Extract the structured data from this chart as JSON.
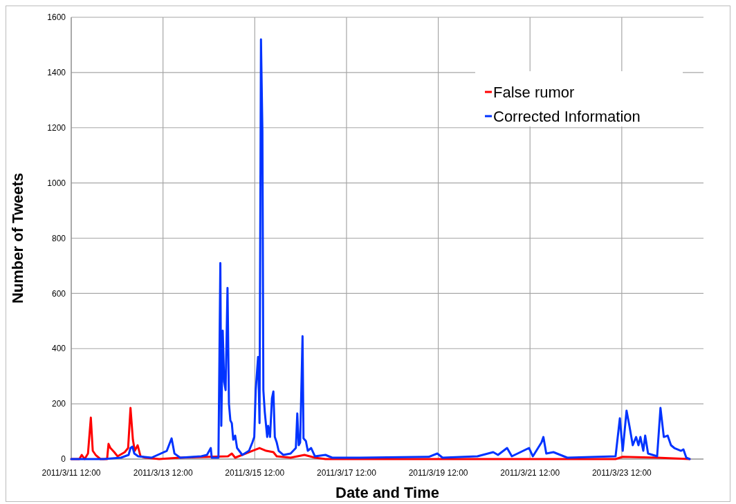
{
  "chart_data": {
    "type": "line",
    "xlabel": "Date and Time",
    "ylabel": "Number of Tweets",
    "xlim": [
      "2011-03-11T12:00",
      "2011-03-25T06:45"
    ],
    "ylim": [
      0,
      1600
    ],
    "xticks": [
      {
        "value": "2011-03-11T12:00",
        "label": "2011/3/11 12:00"
      },
      {
        "value": "2011-03-13T12:00",
        "label": "2011/3/13 12:00"
      },
      {
        "value": "2011-03-15T12:00",
        "label": "2011/3/15 12:00"
      },
      {
        "value": "2011-03-17T12:00",
        "label": "2011/3/17 12:00"
      },
      {
        "value": "2011-03-19T12:00",
        "label": "2011/3/19 12:00"
      },
      {
        "value": "2011-03-21T12:00",
        "label": "2011/3/21 12:00"
      },
      {
        "value": "2011-03-23T12:00",
        "label": "2011/3/23 12:00"
      }
    ],
    "yticks": [
      0,
      200,
      400,
      600,
      800,
      1000,
      1200,
      1400,
      1600
    ],
    "grid": true,
    "legend": "top right",
    "marker": "none",
    "line_style": "solid",
    "series": [
      {
        "name": "False rumor",
        "color": "#ff0000",
        "x": [
          "2011-03-11T12:00",
          "2011-03-11T16:15",
          "2011-03-11T17:30",
          "2011-03-11T19:00",
          "2011-03-11T20:45",
          "2011-03-11T22:15",
          "2011-03-11T23:15",
          "2011-03-12T00:45",
          "2011-03-12T03:15",
          "2011-03-12T06:45",
          "2011-03-12T07:30",
          "2011-03-12T08:30",
          "2011-03-12T10:30",
          "2011-03-12T12:15",
          "2011-03-12T16:00",
          "2011-03-12T17:45",
          "2011-03-12T19:00",
          "2011-03-12T20:15",
          "2011-03-12T21:15",
          "2011-03-12T22:45",
          "2011-03-13T00:15",
          "2011-03-13T02:45",
          "2011-03-13T10:00",
          "2011-03-13T20:45",
          "2011-03-14T22:00",
          "2011-03-15T00:00",
          "2011-03-15T01:45",
          "2011-03-15T10:45",
          "2011-03-15T14:30",
          "2011-03-15T18:00",
          "2011-03-15T21:45",
          "2011-03-15T23:30",
          "2011-03-16T06:45",
          "2011-03-16T14:00",
          "2011-03-16T19:30",
          "2011-03-17T01:00",
          "2011-03-23T08:45",
          "2011-03-23T12:30",
          "2011-03-24T06:30",
          "2011-03-24T23:30"
        ],
        "values": [
          0,
          0,
          15,
          0,
          20,
          150,
          30,
          15,
          0,
          0,
          55,
          40,
          25,
          10,
          25,
          40,
          185,
          70,
          30,
          50,
          10,
          5,
          0,
          5,
          10,
          20,
          5,
          30,
          40,
          30,
          25,
          10,
          5,
          15,
          5,
          0,
          0,
          8,
          5,
          0
        ]
      },
      {
        "name": "Corrected Information",
        "color": "#0033ff",
        "x": [
          "2011-03-11T12:00",
          "2011-03-12T05:00",
          "2011-03-12T14:00",
          "2011-03-12T16:00",
          "2011-03-12T18:00",
          "2011-03-12T19:00",
          "2011-03-12T20:00",
          "2011-03-12T21:00",
          "2011-03-12T23:00",
          "2011-03-13T06:00",
          "2011-03-13T14:00",
          "2011-03-13T16:30",
          "2011-03-13T18:00",
          "2011-03-13T21:00",
          "2011-03-14T08:00",
          "2011-03-14T11:00",
          "2011-03-14T13:00",
          "2011-03-14T13:30",
          "2011-03-14T17:00",
          "2011-03-14T18:00",
          "2011-03-14T18:30",
          "2011-03-14T19:15",
          "2011-03-14T20:00",
          "2011-03-14T20:45",
          "2011-03-14T21:45",
          "2011-03-14T22:30",
          "2011-03-14T23:15",
          "2011-03-15T00:00",
          "2011-03-15T00:45",
          "2011-03-15T01:45",
          "2011-03-15T02:45",
          "2011-03-15T05:30",
          "2011-03-15T09:00",
          "2011-03-15T10:45",
          "2011-03-15T11:45",
          "2011-03-15T12:30",
          "2011-03-15T13:45",
          "2011-03-15T14:30",
          "2011-03-15T15:15",
          "2011-03-15T16:00",
          "2011-03-15T16:30",
          "2011-03-15T17:15",
          "2011-03-15T18:30",
          "2011-03-15T19:00",
          "2011-03-15T20:00",
          "2011-03-15T21:00",
          "2011-03-15T21:45",
          "2011-03-15T22:30",
          "2011-03-15T23:30",
          "2011-03-16T00:30",
          "2011-03-16T03:00",
          "2011-03-16T06:45",
          "2011-03-16T09:30",
          "2011-03-16T10:15",
          "2011-03-16T11:00",
          "2011-03-16T11:45",
          "2011-03-16T13:00",
          "2011-03-16T13:30",
          "2011-03-16T14:45",
          "2011-03-16T15:45",
          "2011-03-16T17:30",
          "2011-03-16T19:30",
          "2011-03-17T01:00",
          "2011-03-17T04:30",
          "2011-03-17T19:00",
          "2011-03-19T07:00",
          "2011-03-19T11:30",
          "2011-03-19T14:15",
          "2011-03-20T08:30",
          "2011-03-20T16:45",
          "2011-03-20T19:15",
          "2011-03-21T00:00",
          "2011-03-21T02:30",
          "2011-03-21T11:30",
          "2011-03-21T13:30",
          "2011-03-21T18:00",
          "2011-03-21T19:00",
          "2011-03-21T20:30",
          "2011-03-22T00:15",
          "2011-03-22T07:30",
          "2011-03-23T08:45",
          "2011-03-23T11:00",
          "2011-03-23T12:30",
          "2011-03-23T14:30",
          "2011-03-23T16:00",
          "2011-03-23T17:45",
          "2011-03-23T19:30",
          "2011-03-23T20:45",
          "2011-03-23T21:45",
          "2011-03-23T23:15",
          "2011-03-24T00:15",
          "2011-03-24T01:45",
          "2011-03-24T06:30",
          "2011-03-24T08:15",
          "2011-03-24T10:00",
          "2011-03-24T12:00",
          "2011-03-24T13:45",
          "2011-03-24T15:30",
          "2011-03-24T17:15",
          "2011-03-24T19:00",
          "2011-03-24T20:15",
          "2011-03-24T21:45",
          "2011-03-24T23:30"
        ],
        "values": [
          0,
          0,
          5,
          10,
          15,
          40,
          45,
          20,
          10,
          5,
          30,
          75,
          20,
          5,
          10,
          15,
          40,
          5,
          5,
          710,
          120,
          465,
          280,
          250,
          620,
          200,
          140,
          130,
          70,
          85,
          40,
          15,
          30,
          60,
          80,
          250,
          370,
          130,
          1520,
          1190,
          250,
          170,
          80,
          120,
          80,
          220,
          245,
          80,
          60,
          30,
          15,
          20,
          40,
          165,
          50,
          60,
          445,
          75,
          65,
          30,
          40,
          10,
          15,
          5,
          5,
          8,
          20,
          5,
          10,
          25,
          15,
          40,
          10,
          40,
          10,
          60,
          80,
          20,
          25,
          5,
          10,
          148,
          30,
          175,
          120,
          50,
          80,
          50,
          80,
          30,
          85,
          20,
          10,
          185,
          80,
          85,
          50,
          40,
          35,
          30,
          35,
          5,
          0
        ]
      }
    ]
  }
}
